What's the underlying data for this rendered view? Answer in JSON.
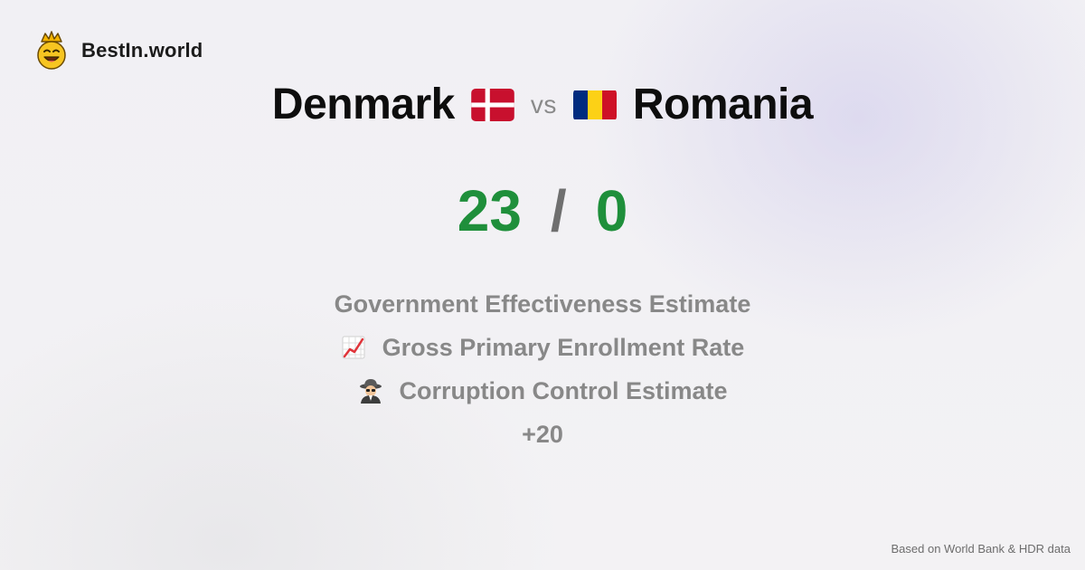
{
  "brand": {
    "name": "BestIn.world",
    "icon": "crown-smiley-icon"
  },
  "comparison": {
    "left_country": "Denmark",
    "left_flag": "denmark-flag-icon",
    "vs_label": "vs",
    "right_country": "Romania",
    "right_flag": "romania-flag-icon"
  },
  "score": {
    "left": "23",
    "separator": "/",
    "right": "0"
  },
  "metrics": [
    {
      "label": "Government Effectiveness Estimate",
      "icon": ""
    },
    {
      "label": "Gross Primary Enrollment Rate",
      "icon": "chart-increasing-icon"
    },
    {
      "label": "Corruption Control Estimate",
      "icon": "detective-icon"
    }
  ],
  "more_label": "+20",
  "footer": {
    "source": "Based on World Bank & HDR data"
  },
  "colors": {
    "score": "#1f8f3b",
    "muted_text": "#888888",
    "flag_denmark_red": "#c8102e",
    "flag_romania_blue": "#002b7f",
    "flag_romania_yellow": "#fcd116",
    "flag_romania_red": "#ce1126"
  }
}
